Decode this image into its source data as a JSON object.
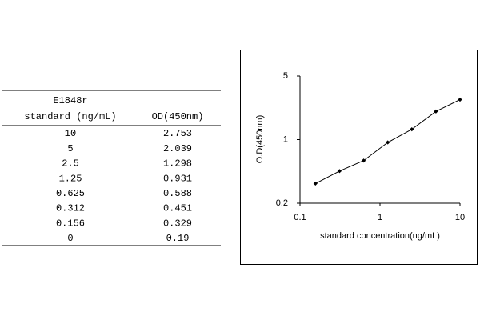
{
  "table": {
    "title": "E1848r",
    "headers": [
      "standard (ng/mL)",
      "OD(450nm)"
    ],
    "rows": [
      [
        "10",
        "2.753"
      ],
      [
        "5",
        "2.039"
      ],
      [
        "2.5",
        "1.298"
      ],
      [
        "1.25",
        "0.931"
      ],
      [
        "0.625",
        "0.588"
      ],
      [
        "0.312",
        "0.451"
      ],
      [
        "0.156",
        "0.329"
      ],
      [
        "0",
        "0.19"
      ]
    ]
  },
  "chart_data": {
    "type": "line",
    "xlabel": "standard concentration(ng/mL)",
    "ylabel": "O.D(450nm)",
    "x": [
      0.156,
      0.312,
      0.625,
      1.25,
      2.5,
      5,
      10
    ],
    "series": [
      {
        "color": "#000000",
        "values": [
          0.329,
          0.451,
          0.588,
          0.931,
          1.298,
          2.039,
          2.753
        ]
      }
    ],
    "xlim": [
      0.1,
      10
    ],
    "ylim": [
      0.2,
      5
    ],
    "xticks": [
      0.1,
      1,
      10
    ],
    "yticks": [
      0.2,
      1,
      5
    ],
    "xscale": "log",
    "yscale": "log",
    "grid": false
  }
}
